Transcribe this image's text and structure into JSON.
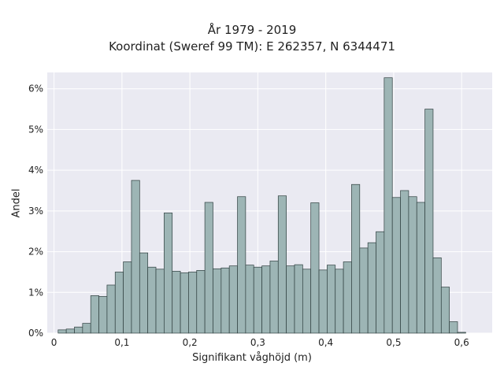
{
  "chart_data": {
    "type": "bar",
    "title": "År 1979 - 2019",
    "subtitle": "Koordinat (Sweref 99 TM): E 262357, N 6344471",
    "xlabel": "Signifikant våghöjd (m)",
    "ylabel": "Andel",
    "xlim": [
      -0.01,
      0.645
    ],
    "ylim": [
      0,
      6.4
    ],
    "x_ticks": [
      0,
      0.1,
      0.2,
      0.3,
      0.4,
      0.5,
      0.6
    ],
    "x_tick_labels": [
      "0",
      "0,1",
      "0,2",
      "0,3",
      "0,4",
      "0,5",
      "0,6"
    ],
    "y_ticks": [
      0,
      1,
      2,
      3,
      4,
      5,
      6
    ],
    "y_tick_labels": [
      "0%",
      "1%",
      "2%",
      "3%",
      "4%",
      "5%",
      "6%"
    ],
    "bin_width": 0.012,
    "bin_start": 0.006,
    "values": [
      0.08,
      0.1,
      0.15,
      0.24,
      0.92,
      0.9,
      1.18,
      1.5,
      1.75,
      3.75,
      1.97,
      1.62,
      1.57,
      2.95,
      1.52,
      1.48,
      1.5,
      1.54,
      3.21,
      1.58,
      1.6,
      1.65,
      3.35,
      1.67,
      1.62,
      1.65,
      1.77,
      3.37,
      1.65,
      1.68,
      1.57,
      3.2,
      1.55,
      1.67,
      1.57,
      1.75,
      3.65,
      2.09,
      2.22,
      2.49,
      6.27,
      3.33,
      3.5,
      3.35,
      3.21,
      5.5,
      1.85,
      1.13,
      0.28,
      0.02
    ],
    "bar_color": "#9db5b5",
    "bar_edge_color": "#2f3f3f",
    "plot_background": "#eaeaf2",
    "grid": true
  }
}
